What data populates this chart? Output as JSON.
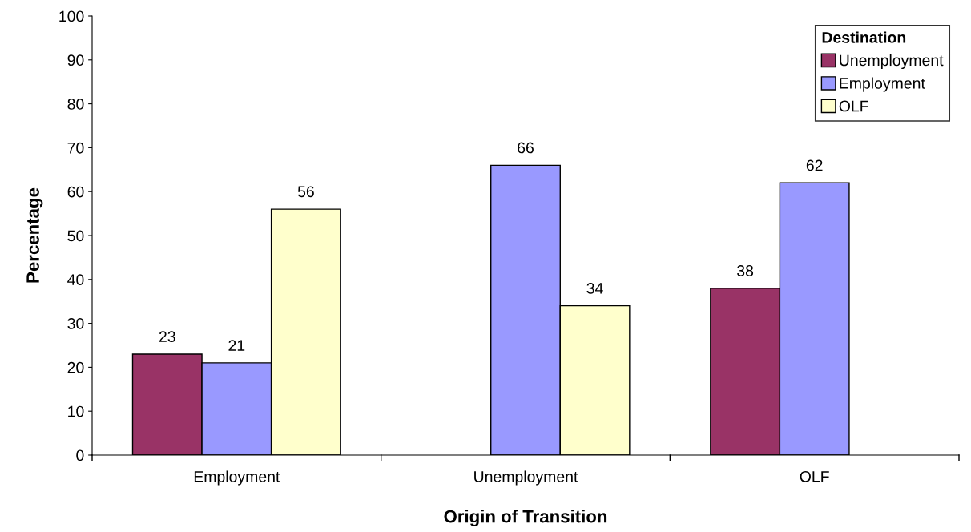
{
  "chart_data": {
    "type": "bar",
    "xlabel": "Origin of Transition",
    "ylabel": "Percentage",
    "categories": [
      "Employment",
      "Unemployment",
      "OLF"
    ],
    "series": [
      {
        "name": "Unemployment",
        "color": "#993366",
        "values": [
          23,
          null,
          38
        ]
      },
      {
        "name": "Employment",
        "color": "#9999ff",
        "values": [
          21,
          66,
          62
        ]
      },
      {
        "name": "OLF",
        "color": "#ffffcc",
        "values": [
          56,
          34,
          null
        ]
      }
    ],
    "legend_title": "Destination",
    "legend": "top right",
    "ylim": [
      0,
      100
    ],
    "yticks": [
      0,
      10,
      20,
      30,
      40,
      50,
      60,
      70,
      80,
      90,
      100
    ],
    "data_labels": true,
    "grid": false
  }
}
